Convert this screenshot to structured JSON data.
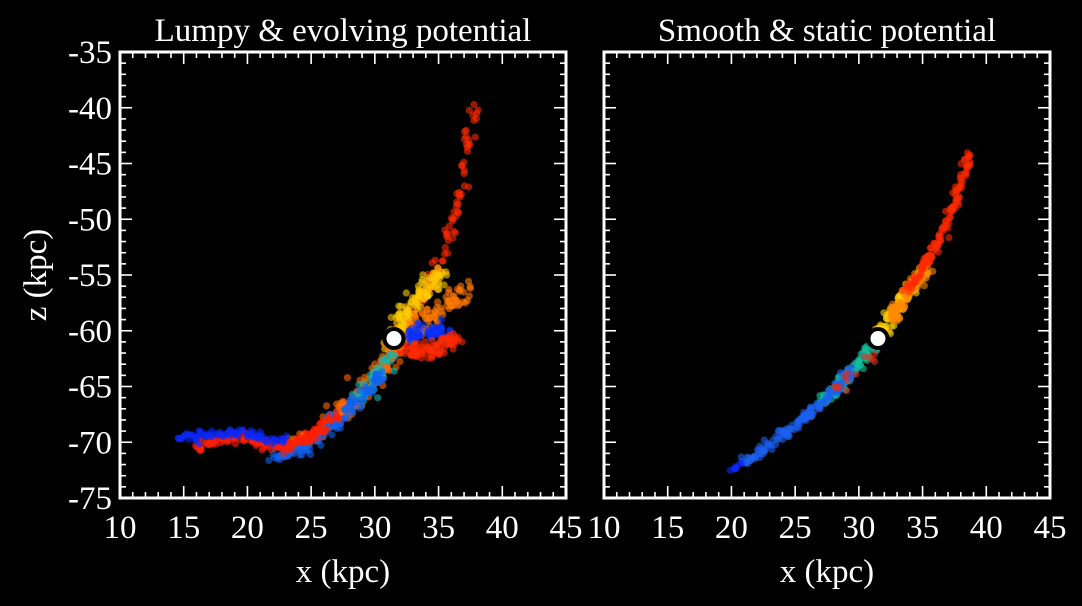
{
  "chart_data": [
    {
      "type": "scatter",
      "title": "Lumpy & evolving potential",
      "xlabel": "x (kpc)",
      "ylabel": "z (kpc)",
      "xlim": [
        10,
        45
      ],
      "ylim": [
        -75,
        -35
      ],
      "xticks": [
        "10",
        "15",
        "20",
        "25",
        "30",
        "35",
        "40",
        "45"
      ],
      "yticks": [
        "-35",
        "-40",
        "-45",
        "-50",
        "-55",
        "-60",
        "-65",
        "-70",
        "-75"
      ],
      "minor_tick_step": 1,
      "grid": false,
      "progenitor": {
        "x": 31.5,
        "z": -60.7
      },
      "color_scale": [
        "#0022ff",
        "#0066ee",
        "#10c0b0",
        "#ffee00",
        "#ff9900",
        "#ff2200"
      ],
      "stream_tracks": [
        {
          "name": "leading-tail-upper",
          "color": "#ff2a00",
          "points": [
            [
              31.5,
              -60.7
            ],
            [
              33.5,
              -57.5
            ],
            [
              35.2,
              -54
            ],
            [
              36.2,
              -50
            ],
            [
              37.0,
              -46
            ],
            [
              37.5,
              -42.5
            ],
            [
              38.0,
              -39.5
            ]
          ],
          "n": 90,
          "spread": 0.35
        },
        {
          "name": "progenitor-core",
          "color": "#ffcc00",
          "points": [
            [
              31.0,
              -61.5
            ],
            [
              32.0,
              -59.5
            ],
            [
              33.5,
              -57.0
            ],
            [
              35.0,
              -55.0
            ]
          ],
          "n": 120,
          "spread": 0.55
        },
        {
          "name": "fan-orange",
          "color": "#ff7a00",
          "points": [
            [
              32.0,
              -61
            ],
            [
              34.0,
              -59
            ],
            [
              36.0,
              -57.5
            ],
            [
              37.0,
              -56
            ]
          ],
          "n": 90,
          "spread": 0.6
        },
        {
          "name": "fan-blue",
          "color": "#0a30ff",
          "points": [
            [
              32.5,
              -60.5
            ],
            [
              34.5,
              -60.0
            ],
            [
              35.8,
              -60.5
            ]
          ],
          "n": 60,
          "spread": 0.55
        },
        {
          "name": "fan-red-lower",
          "color": "#ff2a00",
          "points": [
            [
              31.5,
              -61.5
            ],
            [
              33.5,
              -62.0
            ],
            [
              35.0,
              -61.5
            ],
            [
              36.5,
              -60.5
            ]
          ],
          "n": 100,
          "spread": 0.6
        },
        {
          "name": "trailing-orange",
          "color": "#ff6a00",
          "points": [
            [
              31.5,
              -61.5
            ],
            [
              30.5,
              -63.5
            ],
            [
              29.0,
              -65.5
            ],
            [
              27.0,
              -67.5
            ],
            [
              25.0,
              -69.5
            ],
            [
              23.5,
              -70.5
            ]
          ],
          "n": 160,
          "spread": 0.55
        },
        {
          "name": "trailing-teal",
          "color": "#12b8b0",
          "points": [
            [
              31.0,
              -62.5
            ],
            [
              30.0,
              -64.5
            ],
            [
              28.5,
              -66.5
            ]
          ],
          "n": 50,
          "spread": 0.5
        },
        {
          "name": "trailing-blue",
          "color": "#1060f0",
          "points": [
            [
              30.5,
              -64.0
            ],
            [
              28.5,
              -66.5
            ],
            [
              26.5,
              -68.5
            ],
            [
              24.5,
              -70.5
            ],
            [
              22.0,
              -71.5
            ]
          ],
          "n": 140,
          "spread": 0.45
        },
        {
          "name": "trailing-red",
          "color": "#ff2000",
          "points": [
            [
              27.0,
              -67.5
            ],
            [
              25.0,
              -69.5
            ],
            [
              23.0,
              -70.5
            ],
            [
              21.0,
              -70.0
            ],
            [
              19.0,
              -69.5
            ],
            [
              17.0,
              -70.0
            ],
            [
              16.0,
              -70.4
            ]
          ],
          "n": 170,
          "spread": 0.35
        },
        {
          "name": "trailing-tip-blue",
          "color": "#0a28ff",
          "points": [
            [
              23.0,
              -70.0
            ],
            [
              21.0,
              -69.5
            ],
            [
              19.0,
              -69.0
            ],
            [
              17.0,
              -69.3
            ],
            [
              14.5,
              -69.8
            ]
          ],
          "n": 80,
          "spread": 0.3
        }
      ]
    },
    {
      "type": "scatter",
      "title": "Smooth & static potential",
      "xlabel": "x (kpc)",
      "ylabel": "",
      "xlim": [
        10,
        45
      ],
      "ylim": [
        -75,
        -35
      ],
      "xticks": [
        "10",
        "15",
        "20",
        "25",
        "30",
        "35",
        "40",
        "45"
      ],
      "yticks": [],
      "minor_tick_step": 1,
      "grid": false,
      "progenitor": {
        "x": 31.5,
        "z": -60.7
      },
      "color_scale": [
        "#0022ff",
        "#0066ee",
        "#10c0b0",
        "#ffee00",
        "#ff9900",
        "#ff2200"
      ],
      "stream_tracks": [
        {
          "name": "leading-yellow",
          "color": "#ffd000",
          "points": [
            [
              31.5,
              -60.5
            ],
            [
              32.5,
              -58.5
            ],
            [
              33.8,
              -56.5
            ],
            [
              35.0,
              -54.8
            ]
          ],
          "n": 120,
          "spread": 0.35
        },
        {
          "name": "leading-orange",
          "color": "#ff8a00",
          "points": [
            [
              32.5,
              -59
            ],
            [
              34.0,
              -56.5
            ],
            [
              35.5,
              -54.0
            ]
          ],
          "n": 80,
          "spread": 0.4
        },
        {
          "name": "leading-red",
          "color": "#ff2a00",
          "points": [
            [
              33.5,
              -57.0
            ],
            [
              35.0,
              -54.5
            ],
            [
              36.5,
              -51.5
            ],
            [
              37.5,
              -48.5
            ],
            [
              38.2,
              -46.0
            ],
            [
              38.7,
              -44.0
            ]
          ],
          "n": 130,
          "spread": 0.25
        },
        {
          "name": "trailing-teal",
          "color": "#14c0a0",
          "points": [
            [
              31.0,
              -61.5
            ],
            [
              30.0,
              -63.0
            ],
            [
              28.5,
              -65.0
            ],
            [
              27.0,
              -66.5
            ]
          ],
          "n": 90,
          "spread": 0.35
        },
        {
          "name": "trailing-blue",
          "color": "#1a60f0",
          "points": [
            [
              29.5,
              -63.5
            ],
            [
              27.5,
              -66.0
            ],
            [
              25.5,
              -68.0
            ],
            [
              23.5,
              -69.8
            ],
            [
              22.0,
              -71.0
            ],
            [
              21.0,
              -71.8
            ]
          ],
          "n": 150,
          "spread": 0.3
        },
        {
          "name": "trailing-red-specks",
          "color": "#d83020",
          "points": [
            [
              31.0,
              -62.0
            ],
            [
              29.5,
              -64.0
            ],
            [
              28.0,
              -65.5
            ]
          ],
          "n": 14,
          "spread": 0.4
        },
        {
          "name": "trailing-tip",
          "color": "#0a28ff",
          "points": [
            [
              21.0,
              -71.8
            ],
            [
              19.8,
              -72.6
            ]
          ],
          "n": 8,
          "spread": 0.15
        }
      ]
    }
  ]
}
